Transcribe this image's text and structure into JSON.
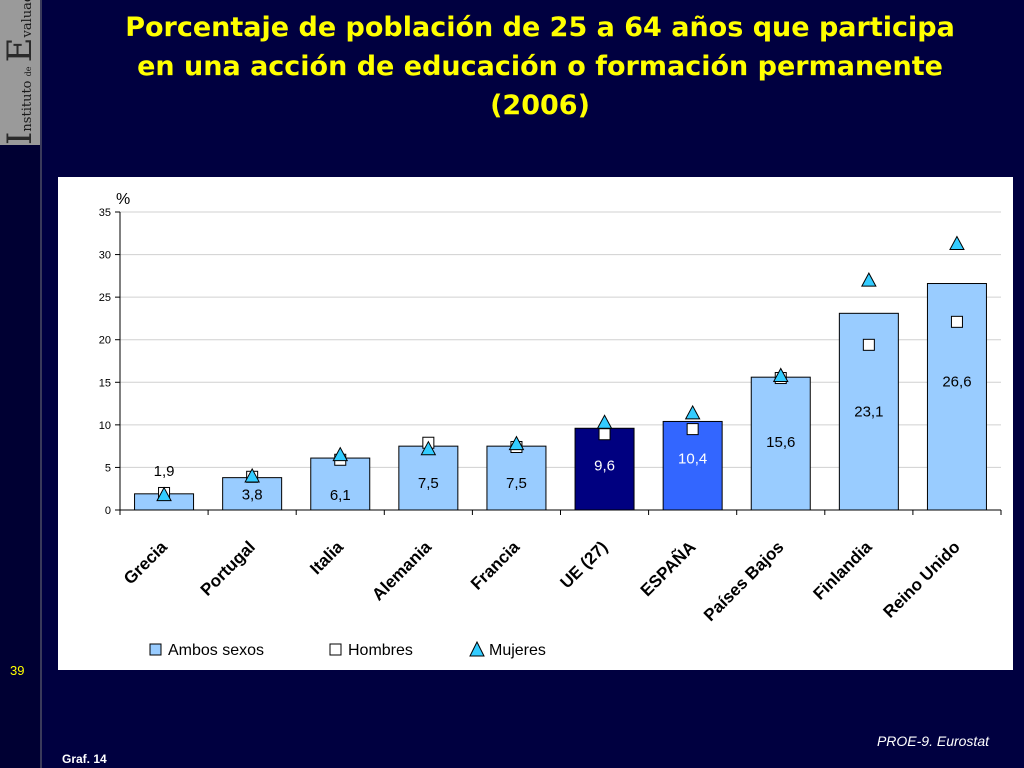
{
  "slide": {
    "title": "Porcentaje de población de 25 a 64 años que participa en una acción de educación o formación permanente (2006)",
    "slide_number": "39",
    "graph_label": "Graf. 14",
    "source": "PROE-9. Eurostat",
    "logo": {
      "word1": "nstituto",
      "word2": "de",
      "word3": "valuación",
      "initial1": "I",
      "initial2": "E"
    }
  },
  "colors": {
    "background": "#000040",
    "title": "#ffff00",
    "bar_default": "#99ccff",
    "bar_ue": "#000080",
    "bar_espana": "#3366ff",
    "mujeres_marker": "#33ccff"
  },
  "chart_data": {
    "type": "bar",
    "title": "",
    "ylabel": "%",
    "xlabel": "",
    "ylim": [
      0,
      35
    ],
    "yticks": [
      0,
      5,
      10,
      15,
      20,
      25,
      30,
      35
    ],
    "grid": true,
    "legend_position": "bottom",
    "categories": [
      "Grecia",
      "Portugal",
      "Italia",
      "Alemania",
      "Francia",
      "UE (27)",
      "ESPAÑA",
      "Países Bajos",
      "Finlandia",
      "Reino Unido"
    ],
    "series": [
      {
        "name": "Ambos sexos",
        "kind": "bar",
        "values": [
          1.9,
          3.8,
          6.1,
          7.5,
          7.5,
          9.6,
          10.4,
          15.6,
          23.1,
          26.6
        ],
        "labels": [
          "1,9",
          "3,8",
          "6,1",
          "7,5",
          "7,5",
          "9,6",
          "10,4",
          "15,6",
          "23,1",
          "26,6"
        ]
      },
      {
        "name": "Hombres",
        "kind": "marker-square",
        "values": [
          2.0,
          3.9,
          5.9,
          7.9,
          7.4,
          8.9,
          9.5,
          15.5,
          19.4,
          22.1
        ]
      },
      {
        "name": "Mujeres",
        "kind": "marker-triangle",
        "values": [
          1.8,
          4.0,
          6.5,
          7.2,
          7.8,
          10.3,
          11.4,
          15.8,
          27.0,
          31.3
        ]
      }
    ]
  }
}
